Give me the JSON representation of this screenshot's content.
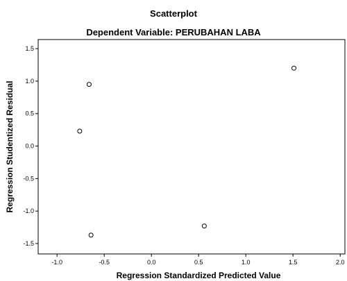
{
  "chart_data": {
    "type": "scatter",
    "title": "Scatterplot",
    "subtitle": "Dependent Variable: PERUBAHAN LABA",
    "xlabel": "Regression Standardized Predicted Value",
    "ylabel": "Regression Studentized Residual",
    "xlim": [
      -1.2,
      2.05
    ],
    "ylim": [
      -1.66,
      1.64
    ],
    "x_ticks": [
      -1.0,
      -0.5,
      0.0,
      0.5,
      1.0,
      1.5,
      2.0
    ],
    "x_tick_labels": [
      "-1.0",
      "-0.5",
      "0.0",
      "0.5",
      "1.0",
      "1.5",
      "2.0"
    ],
    "y_ticks": [
      1.5,
      1.0,
      0.5,
      0.0,
      -0.5,
      -1.0,
      -1.5
    ],
    "y_tick_labels": [
      "1.5",
      "1.0",
      "0.5",
      "0.0",
      "-0.5",
      "-1.0",
      "-1.5"
    ],
    "grid": false,
    "points": [
      {
        "x": -0.66,
        "y": 0.95
      },
      {
        "x": -0.76,
        "y": 0.23
      },
      {
        "x": -0.64,
        "y": -1.37
      },
      {
        "x": 0.56,
        "y": -1.23
      },
      {
        "x": 1.51,
        "y": 1.2
      }
    ]
  }
}
